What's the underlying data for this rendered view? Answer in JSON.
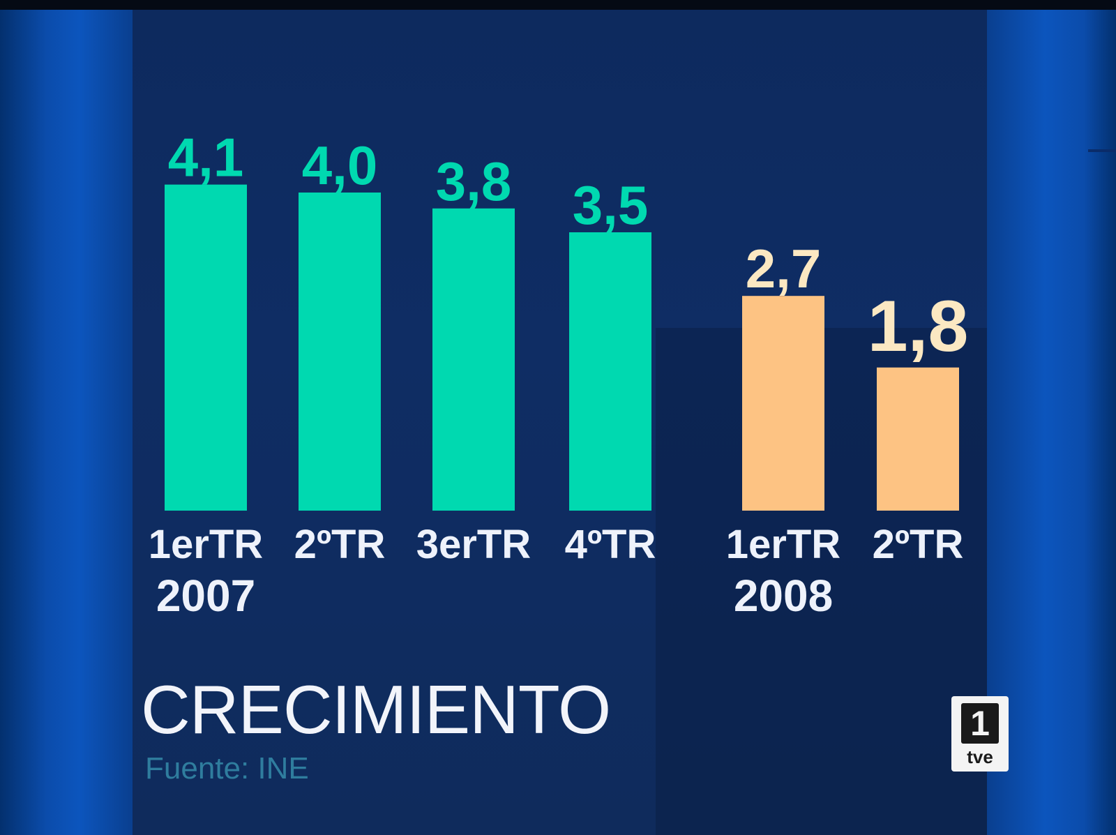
{
  "title": "CRECIMIENTO",
  "source": "Fuente: INE",
  "logo": {
    "number": "1",
    "text": "tve"
  },
  "colors": {
    "bars_2007": "#00d9b0",
    "bars_2008": "#fdc383",
    "labels_2007": "#00d9b0",
    "labels_2008": "#fbe8c2"
  },
  "chart_data": {
    "type": "bar",
    "title": "CRECIMIENTO",
    "xlabel": "",
    "ylabel": "",
    "ylim": [
      0,
      4.1
    ],
    "grid": false,
    "categories": [
      "1erTR",
      "2ºTR",
      "3erTR",
      "4ºTR",
      "1erTR",
      "2ºTR"
    ],
    "years": [
      {
        "label": "2007",
        "under_category": 0
      },
      {
        "label": "2008",
        "under_category": 4
      }
    ],
    "values": [
      4.1,
      4.0,
      3.8,
      3.5,
      2.7,
      1.8
    ],
    "value_labels": [
      "4,1",
      "4,0",
      "3,8",
      "3,5",
      "2,7",
      "1,8"
    ],
    "bar_groups": [
      "2007",
      "2007",
      "2007",
      "2007",
      "2008",
      "2008"
    ]
  }
}
